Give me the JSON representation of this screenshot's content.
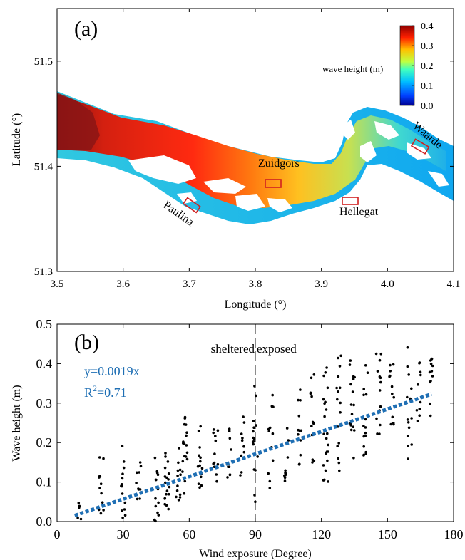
{
  "chart_data": [
    {
      "panel": "(a)",
      "type": "heatmap",
      "xlabel": "Longitude (°)",
      "ylabel": "Latitude (°)",
      "xlim": [
        3.5,
        4.1
      ],
      "ylim": [
        51.3,
        51.55
      ],
      "x_ticks": [
        "3.5",
        "3.6",
        "3.7",
        "3.8",
        "3.9",
        "4.0",
        "4.1"
      ],
      "y_ticks": [
        "51.3",
        "51.4",
        "51.5"
      ],
      "colorbar": {
        "label": "wave height (m)",
        "range": [
          0.0,
          0.4
        ],
        "ticks": [
          "0.4",
          "0.3",
          "0.2",
          "0.1",
          "0.0"
        ],
        "colormap": "jet"
      },
      "sites": [
        {
          "name": "Zuidgors",
          "lon": 3.825,
          "lat": 51.385
        },
        {
          "name": "Paulina",
          "lon": 3.705,
          "lat": 51.365
        },
        {
          "name": "Hellegat",
          "lon": 3.945,
          "lat": 51.37
        },
        {
          "name": "Waarde",
          "lon": 4.055,
          "lat": 51.42
        }
      ]
    },
    {
      "panel": "(b)",
      "type": "scatter",
      "xlabel": "Wind exposure (Degree)",
      "ylabel": "Wave height (m)",
      "xlim": [
        0,
        180
      ],
      "ylim": [
        0,
        0.5
      ],
      "x_ticks": [
        "0",
        "30",
        "60",
        "90",
        "120",
        "150",
        "180"
      ],
      "y_ticks": [
        "0.0",
        "0.1",
        "0.2",
        "0.3",
        "0.4",
        "0.5"
      ],
      "fit": {
        "slope": 0.0019,
        "x_range": [
          8,
          170
        ],
        "equation": "y=0.0019x",
        "r2_label": "R",
        "r2_sup": "2",
        "r2_value": "=0.71",
        "color": "#1f6fb4"
      },
      "divider": {
        "x": 90,
        "left_label": "sheltered",
        "right_label": "exposed"
      },
      "point_columns": [
        {
          "x": 10,
          "ymin": 0.0,
          "ymax": 0.08,
          "n": 5
        },
        {
          "x": 20,
          "ymin": 0.0,
          "ymax": 0.17,
          "n": 12
        },
        {
          "x": 30,
          "ymin": 0.0,
          "ymax": 0.2,
          "n": 14
        },
        {
          "x": 37,
          "ymin": 0.02,
          "ymax": 0.16,
          "n": 10
        },
        {
          "x": 45,
          "ymin": 0.0,
          "ymax": 0.18,
          "n": 14
        },
        {
          "x": 50,
          "ymin": 0.03,
          "ymax": 0.2,
          "n": 18
        },
        {
          "x": 55,
          "ymin": 0.05,
          "ymax": 0.2,
          "n": 12
        },
        {
          "x": 58,
          "ymin": 0.06,
          "ymax": 0.27,
          "n": 18
        },
        {
          "x": 65,
          "ymin": 0.08,
          "ymax": 0.26,
          "n": 14
        },
        {
          "x": 72,
          "ymin": 0.08,
          "ymax": 0.25,
          "n": 12
        },
        {
          "x": 78,
          "ymin": 0.1,
          "ymax": 0.24,
          "n": 10
        },
        {
          "x": 84,
          "ymin": 0.1,
          "ymax": 0.3,
          "n": 10
        },
        {
          "x": 90,
          "ymin": 0.05,
          "ymax": 0.38,
          "n": 16
        },
        {
          "x": 97,
          "ymin": 0.08,
          "ymax": 0.33,
          "n": 12
        },
        {
          "x": 104,
          "ymin": 0.1,
          "ymax": 0.3,
          "n": 12
        },
        {
          "x": 110,
          "ymin": 0.12,
          "ymax": 0.36,
          "n": 12
        },
        {
          "x": 116,
          "ymin": 0.15,
          "ymax": 0.38,
          "n": 12
        },
        {
          "x": 122,
          "ymin": 0.1,
          "ymax": 0.42,
          "n": 22
        },
        {
          "x": 128,
          "ymin": 0.12,
          "ymax": 0.43,
          "n": 16
        },
        {
          "x": 134,
          "ymin": 0.15,
          "ymax": 0.41,
          "n": 16
        },
        {
          "x": 140,
          "ymin": 0.15,
          "ymax": 0.42,
          "n": 16
        },
        {
          "x": 146,
          "ymin": 0.2,
          "ymax": 0.43,
          "n": 14
        },
        {
          "x": 152,
          "ymin": 0.22,
          "ymax": 0.44,
          "n": 12
        },
        {
          "x": 160,
          "ymin": 0.12,
          "ymax": 0.45,
          "n": 14
        },
        {
          "x": 164,
          "ymin": 0.25,
          "ymax": 0.44,
          "n": 10
        },
        {
          "x": 170,
          "ymin": 0.24,
          "ymax": 0.44,
          "n": 12
        }
      ]
    }
  ]
}
